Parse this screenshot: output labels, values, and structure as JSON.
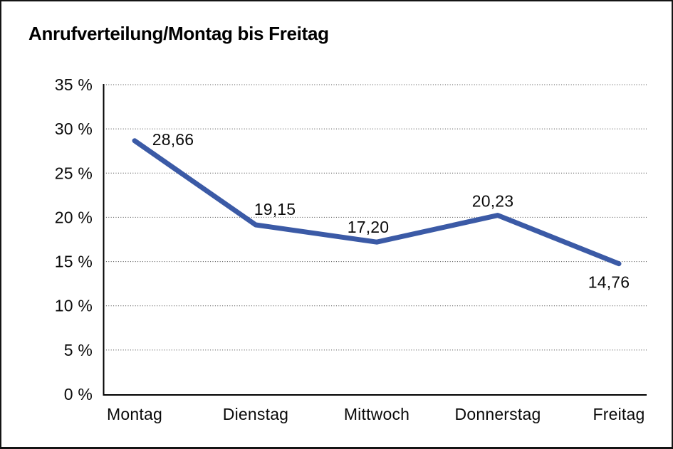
{
  "title": "Anrufverteilung/Montag bis Freitag",
  "colors": {
    "line": "#3B5AA6",
    "grid": "#4a4a4a",
    "axis": "#000000",
    "text": "#0a0a0a",
    "frame_border": "#141414",
    "background": "#ffffff"
  },
  "chart_data": {
    "type": "line",
    "title": "Anrufverteilung/Montag bis Freitag",
    "categories": [
      "Montag",
      "Dienstag",
      "Mittwoch",
      "Donnerstag",
      "Freitag"
    ],
    "values": [
      28.66,
      19.15,
      17.2,
      20.23,
      14.76
    ],
    "value_labels": [
      "28,66",
      "19,15",
      "17,20",
      "20,23",
      "14,76"
    ],
    "y_ticks": [
      0,
      5,
      10,
      15,
      20,
      25,
      30,
      35
    ],
    "y_tick_labels": [
      "0 %",
      "5 %",
      "10 %",
      "15 %",
      "20 %",
      "25 %",
      "30 %",
      "35 %"
    ],
    "xlabel": "",
    "ylabel": "",
    "ylim": [
      0,
      35
    ],
    "grid": "horizontal-dotted",
    "legend": "none"
  }
}
